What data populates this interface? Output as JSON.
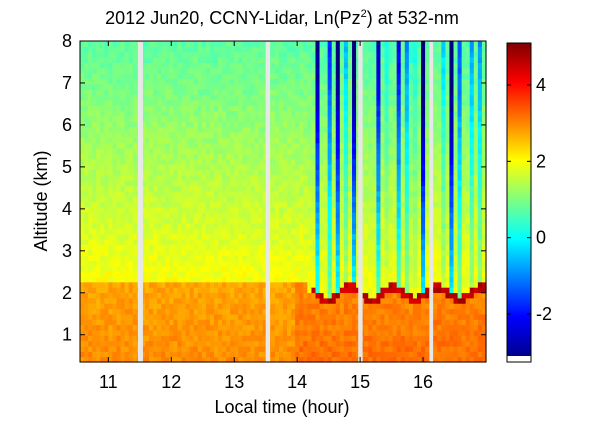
{
  "chart_data": {
    "type": "heatmap",
    "title_main": "2012 Jun20, CCNY-Lidar, Ln(Pz",
    "title_sup": "2",
    "title_tail": ") at 532-nm",
    "xlabel": "Local time (hour)",
    "ylabel": "Altitude (km)",
    "xlim": [
      10.55,
      17.0
    ],
    "ylim": [
      0.35,
      8.0
    ],
    "xticks": [
      11,
      12,
      13,
      14,
      15,
      16
    ],
    "yticks": [
      1,
      2,
      3,
      4,
      5,
      6,
      7,
      8
    ],
    "colorbar": {
      "colormap": "jet",
      "clim": [
        -3.1,
        5.1
      ],
      "ticks": [
        -2,
        0,
        2,
        4
      ],
      "tick_labels": [
        "-2",
        "0",
        "2",
        "4"
      ]
    },
    "data_gaps_hour": [
      [
        11.47,
        11.55
      ],
      [
        13.5,
        13.57
      ],
      [
        14.97,
        15.04
      ],
      [
        16.1,
        16.16
      ]
    ],
    "values_description_levels": {
      "boundary_layer_top_km_before_14h": 2.2,
      "boundary_layer_top_km_after_14h": 1.9
    }
  }
}
